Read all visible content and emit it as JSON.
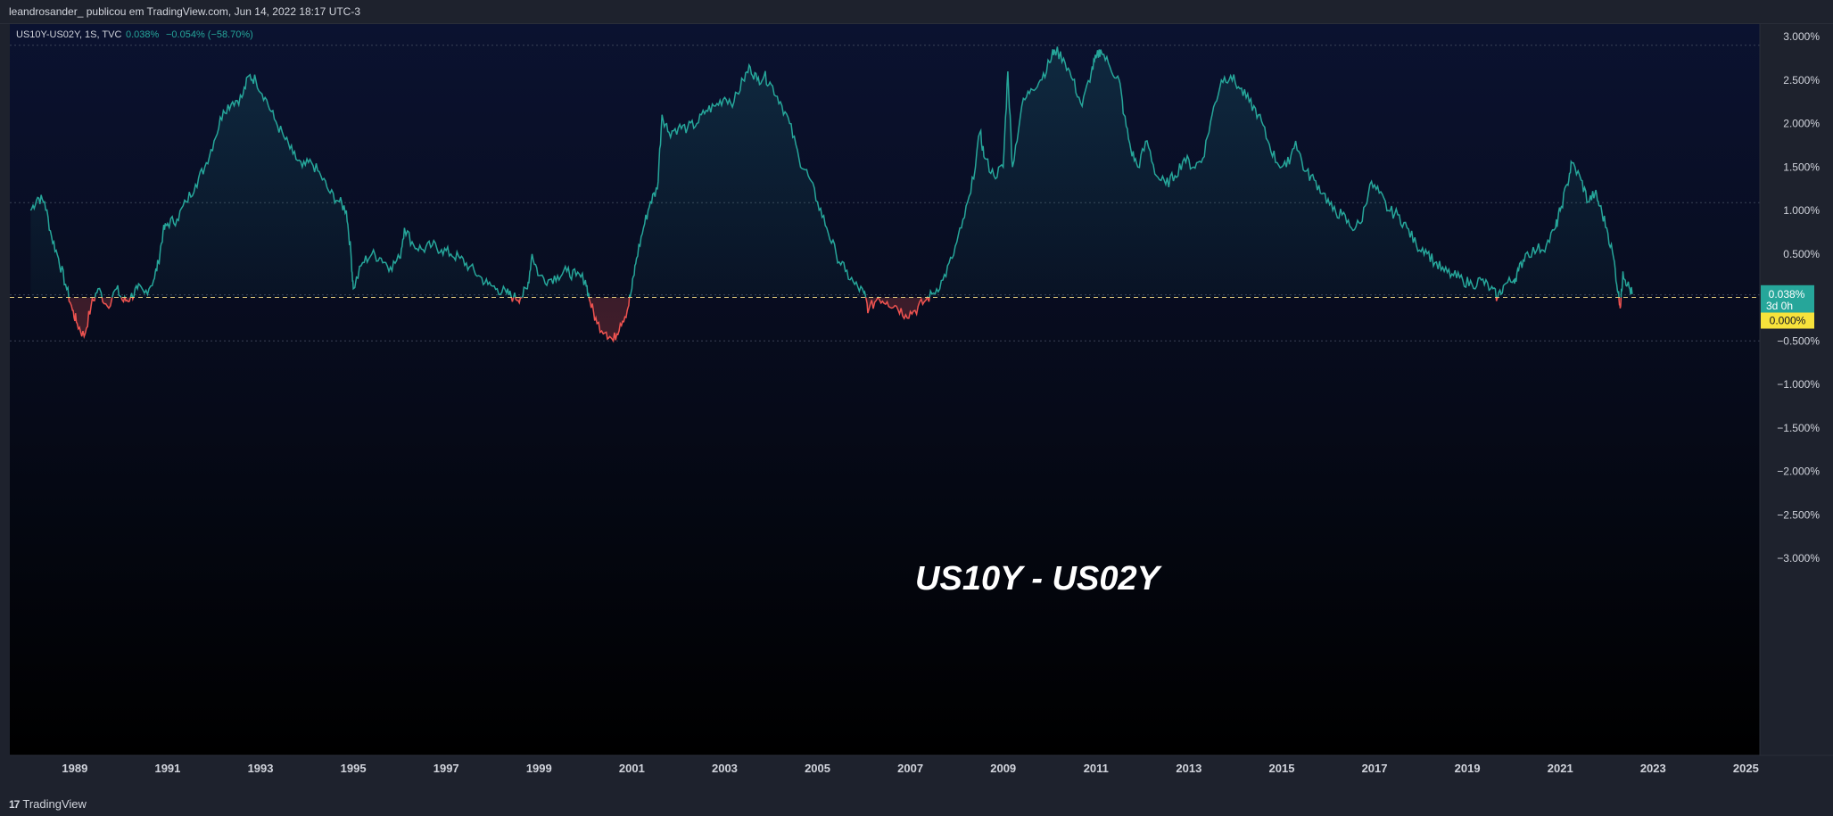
{
  "header": {
    "publisher": "leandrosander_ publicou em TradingView.com, Jun 14, 2022 18:17 UTC-3"
  },
  "legend": {
    "symbol": "US10Y-US02Y, 1S, TVC",
    "last": "0.038%",
    "change": "−0.054% (−58.70%)"
  },
  "price_axis": {
    "labels": [
      "3.000%",
      "2.500%",
      "2.000%",
      "1.500%",
      "1.000%",
      "0.500%",
      "0.000%",
      "−0.500%",
      "−1.000%",
      "−1.500%",
      "−2.000%",
      "−2.500%",
      "−3.000%"
    ],
    "last_price_label": "0.038%",
    "countdown_label": "3d 0h",
    "zero_label": "0.000%",
    "last_price_color": "#26a69a",
    "zero_label_color": "#f7e23b"
  },
  "time_axis": {
    "labels": [
      "1989",
      "1991",
      "1993",
      "1995",
      "1997",
      "1999",
      "2001",
      "2003",
      "2005",
      "2007",
      "2009",
      "2011",
      "2013",
      "2015",
      "2017",
      "2019",
      "2021",
      "2023",
      "2025"
    ]
  },
  "annotation": {
    "text": "US10Y - US02Y"
  },
  "footer": {
    "brand": "TradingView",
    "brand_mark": "17"
  },
  "colors": {
    "positive": "#26a69a",
    "negative": "#ef5350",
    "background_top": "#0b1230",
    "background_bottom": "#000000",
    "zero_line": "#e0c97a"
  },
  "chart_data": {
    "type": "line",
    "title": "US10Y - US02Y",
    "x_unit": "year",
    "y_unit": "%",
    "ylim": [
      -3.1,
      3.1
    ],
    "xlim": [
      1987.6,
      2025.3
    ],
    "baseline": 0,
    "horizontal_levels": [
      2.9,
      1.09,
      0.03,
      -0.5
    ],
    "series": [
      {
        "points": [
          [
            1988.05,
            1.0
          ],
          [
            1988.2,
            1.15
          ],
          [
            1988.35,
            1.1
          ],
          [
            1988.5,
            0.7
          ],
          [
            1988.65,
            0.45
          ],
          [
            1988.8,
            0.15
          ],
          [
            1988.95,
            -0.15
          ],
          [
            1989.05,
            -0.3
          ],
          [
            1989.2,
            -0.45
          ],
          [
            1989.35,
            -0.1
          ],
          [
            1989.5,
            0.1
          ],
          [
            1989.7,
            -0.1
          ],
          [
            1989.9,
            0.1
          ],
          [
            1990.05,
            -0.05
          ],
          [
            1990.2,
            0.0
          ],
          [
            1990.35,
            0.1
          ],
          [
            1990.5,
            0.05
          ],
          [
            1990.7,
            0.2
          ],
          [
            1990.8,
            0.4
          ],
          [
            1990.9,
            0.75
          ],
          [
            1991.0,
            0.85
          ],
          [
            1991.2,
            0.9
          ],
          [
            1991.4,
            1.1
          ],
          [
            1991.6,
            1.3
          ],
          [
            1991.8,
            1.5
          ],
          [
            1992.0,
            1.8
          ],
          [
            1992.2,
            2.15
          ],
          [
            1992.4,
            2.25
          ],
          [
            1992.6,
            2.3
          ],
          [
            1992.75,
            2.55
          ],
          [
            1992.9,
            2.5
          ],
          [
            1993.1,
            2.3
          ],
          [
            1993.3,
            2.05
          ],
          [
            1993.5,
            1.85
          ],
          [
            1993.7,
            1.65
          ],
          [
            1993.9,
            1.5
          ],
          [
            1994.1,
            1.55
          ],
          [
            1994.3,
            1.4
          ],
          [
            1994.5,
            1.2
          ],
          [
            1994.7,
            1.1
          ],
          [
            1994.85,
            1.0
          ],
          [
            1994.95,
            0.5
          ],
          [
            1995.0,
            0.1
          ],
          [
            1995.2,
            0.4
          ],
          [
            1995.4,
            0.5
          ],
          [
            1995.6,
            0.45
          ],
          [
            1995.8,
            0.35
          ],
          [
            1996.0,
            0.45
          ],
          [
            1996.1,
            0.8
          ],
          [
            1996.3,
            0.6
          ],
          [
            1996.5,
            0.55
          ],
          [
            1996.7,
            0.6
          ],
          [
            1996.9,
            0.55
          ],
          [
            1997.1,
            0.5
          ],
          [
            1997.3,
            0.45
          ],
          [
            1997.5,
            0.35
          ],
          [
            1997.7,
            0.25
          ],
          [
            1997.9,
            0.15
          ],
          [
            1998.1,
            0.1
          ],
          [
            1998.3,
            0.05
          ],
          [
            1998.45,
            0.0
          ],
          [
            1998.6,
            0.0
          ],
          [
            1998.75,
            0.1
          ],
          [
            1998.85,
            0.5
          ],
          [
            1999.0,
            0.25
          ],
          [
            1999.2,
            0.2
          ],
          [
            1999.4,
            0.25
          ],
          [
            1999.6,
            0.3
          ],
          [
            1999.8,
            0.25
          ],
          [
            2000.0,
            0.2
          ],
          [
            2000.1,
            -0.05
          ],
          [
            2000.25,
            -0.3
          ],
          [
            2000.45,
            -0.4
          ],
          [
            2000.6,
            -0.5
          ],
          [
            2000.75,
            -0.3
          ],
          [
            2000.9,
            -0.15
          ],
          [
            2001.0,
            0.1
          ],
          [
            2001.1,
            0.45
          ],
          [
            2001.25,
            0.8
          ],
          [
            2001.4,
            1.1
          ],
          [
            2001.55,
            1.25
          ],
          [
            2001.65,
            2.1
          ],
          [
            2001.8,
            1.9
          ],
          [
            2002.0,
            1.95
          ],
          [
            2002.2,
            1.95
          ],
          [
            2002.4,
            2.0
          ],
          [
            2002.6,
            2.15
          ],
          [
            2002.8,
            2.2
          ],
          [
            2003.0,
            2.3
          ],
          [
            2003.2,
            2.25
          ],
          [
            2003.4,
            2.5
          ],
          [
            2003.55,
            2.65
          ],
          [
            2003.7,
            2.5
          ],
          [
            2003.85,
            2.55
          ],
          [
            2004.0,
            2.45
          ],
          [
            2004.2,
            2.25
          ],
          [
            2004.4,
            2.0
          ],
          [
            2004.6,
            1.6
          ],
          [
            2004.8,
            1.4
          ],
          [
            2005.0,
            1.1
          ],
          [
            2005.2,
            0.8
          ],
          [
            2005.4,
            0.5
          ],
          [
            2005.6,
            0.3
          ],
          [
            2005.8,
            0.15
          ],
          [
            2006.0,
            0.05
          ],
          [
            2006.1,
            -0.15
          ],
          [
            2006.3,
            0.0
          ],
          [
            2006.5,
            -0.05
          ],
          [
            2006.7,
            -0.1
          ],
          [
            2006.9,
            -0.2
          ],
          [
            2007.1,
            -0.15
          ],
          [
            2007.3,
            -0.05
          ],
          [
            2007.5,
            0.05
          ],
          [
            2007.7,
            0.2
          ],
          [
            2007.9,
            0.45
          ],
          [
            2008.1,
            0.8
          ],
          [
            2008.3,
            1.2
          ],
          [
            2008.5,
            1.9
          ],
          [
            2008.6,
            1.6
          ],
          [
            2008.8,
            1.4
          ],
          [
            2009.0,
            1.5
          ],
          [
            2009.1,
            2.6
          ],
          [
            2009.2,
            1.5
          ],
          [
            2009.4,
            2.2
          ],
          [
            2009.6,
            2.4
          ],
          [
            2009.8,
            2.5
          ],
          [
            2010.0,
            2.7
          ],
          [
            2010.1,
            2.85
          ],
          [
            2010.3,
            2.75
          ],
          [
            2010.5,
            2.5
          ],
          [
            2010.7,
            2.2
          ],
          [
            2010.9,
            2.6
          ],
          [
            2011.0,
            2.75
          ],
          [
            2011.1,
            2.85
          ],
          [
            2011.3,
            2.65
          ],
          [
            2011.5,
            2.5
          ],
          [
            2011.6,
            2.1
          ],
          [
            2011.75,
            1.7
          ],
          [
            2011.9,
            1.5
          ],
          [
            2012.1,
            1.8
          ],
          [
            2012.3,
            1.4
          ],
          [
            2012.5,
            1.3
          ],
          [
            2012.7,
            1.4
          ],
          [
            2012.9,
            1.6
          ],
          [
            2013.1,
            1.5
          ],
          [
            2013.3,
            1.6
          ],
          [
            2013.5,
            2.1
          ],
          [
            2013.7,
            2.5
          ],
          [
            2013.9,
            2.55
          ],
          [
            2014.1,
            2.4
          ],
          [
            2014.3,
            2.25
          ],
          [
            2014.5,
            2.1
          ],
          [
            2014.7,
            1.8
          ],
          [
            2014.9,
            1.55
          ],
          [
            2015.1,
            1.5
          ],
          [
            2015.3,
            1.8
          ],
          [
            2015.5,
            1.45
          ],
          [
            2015.7,
            1.35
          ],
          [
            2015.9,
            1.2
          ],
          [
            2016.1,
            1.0
          ],
          [
            2016.3,
            0.95
          ],
          [
            2016.5,
            0.8
          ],
          [
            2016.7,
            0.85
          ],
          [
            2016.9,
            1.3
          ],
          [
            2017.1,
            1.2
          ],
          [
            2017.3,
            1.0
          ],
          [
            2017.5,
            0.95
          ],
          [
            2017.7,
            0.8
          ],
          [
            2017.9,
            0.6
          ],
          [
            2018.1,
            0.55
          ],
          [
            2018.3,
            0.4
          ],
          [
            2018.5,
            0.3
          ],
          [
            2018.7,
            0.25
          ],
          [
            2018.9,
            0.2
          ],
          [
            2019.1,
            0.15
          ],
          [
            2019.3,
            0.2
          ],
          [
            2019.5,
            0.1
          ],
          [
            2019.65,
            0.0
          ],
          [
            2019.8,
            0.15
          ],
          [
            2020.0,
            0.2
          ],
          [
            2020.1,
            0.3
          ],
          [
            2020.25,
            0.5
          ],
          [
            2020.5,
            0.55
          ],
          [
            2020.7,
            0.6
          ],
          [
            2020.9,
            0.8
          ],
          [
            2021.0,
            1.0
          ],
          [
            2021.15,
            1.3
          ],
          [
            2021.25,
            1.55
          ],
          [
            2021.45,
            1.35
          ],
          [
            2021.6,
            1.1
          ],
          [
            2021.75,
            1.2
          ],
          [
            2021.85,
            1.05
          ],
          [
            2022.0,
            0.8
          ],
          [
            2022.15,
            0.45
          ],
          [
            2022.25,
            0.05
          ],
          [
            2022.3,
            -0.1
          ],
          [
            2022.35,
            0.3
          ],
          [
            2022.45,
            0.15
          ],
          [
            2022.55,
            0.038
          ]
        ]
      }
    ]
  }
}
